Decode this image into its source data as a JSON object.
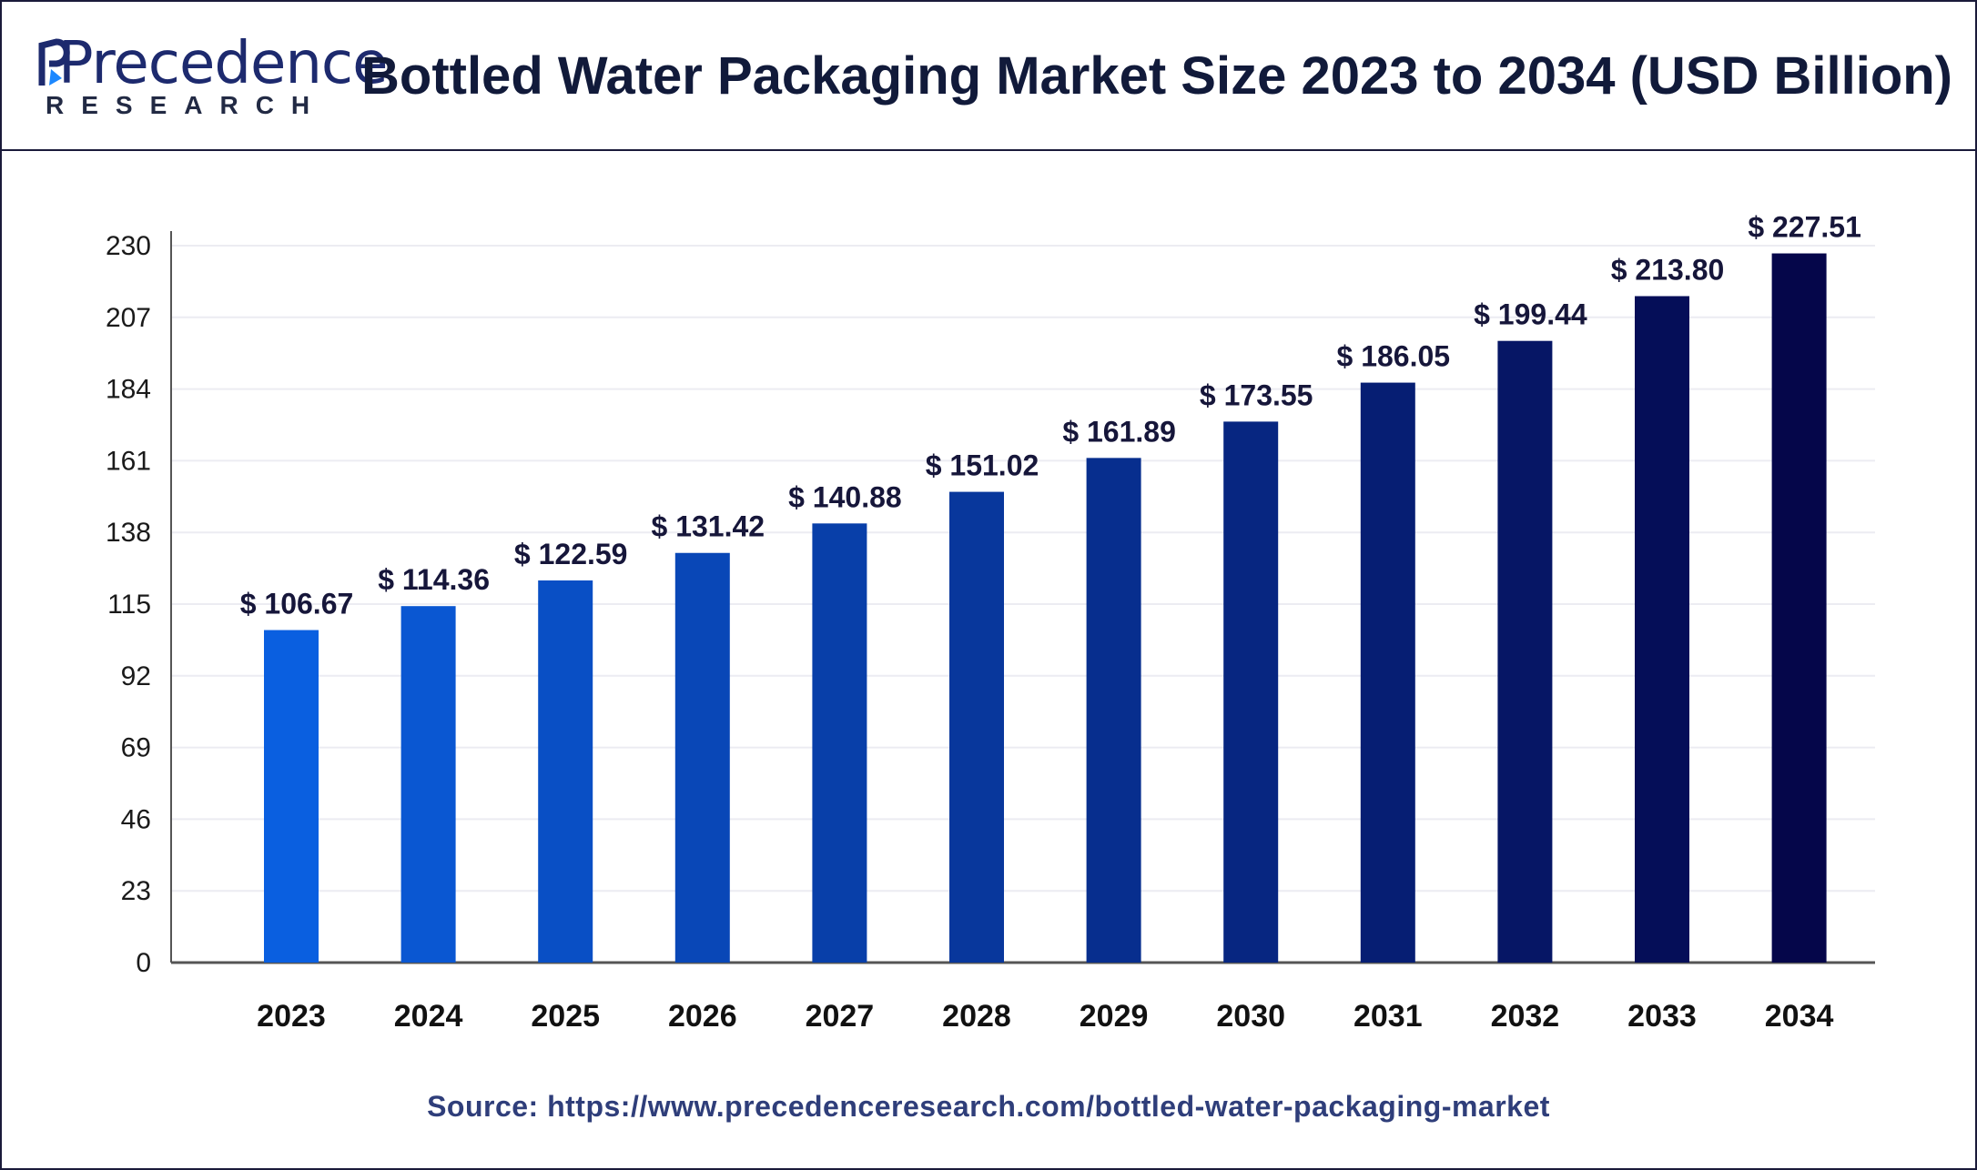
{
  "header": {
    "logo_word": "Precedence",
    "logo_sub": "RESEARCH",
    "title": "Bottled Water Packaging Market Size 2023 to 2034 (USD Billion)"
  },
  "source": "Source: https://www.precedenceresearch.com/bottled-water-packaging-market",
  "colors": {
    "border": "#1a1a3a",
    "title": "#111a3a",
    "brand": "#1d2a6e",
    "bar_start": "#0a5fe0",
    "bar_end": "#05064a",
    "grid": "#ececf2",
    "axis": "#555555"
  },
  "chart_data": {
    "type": "bar",
    "title": "Bottled Water Packaging Market Size 2023 to 2034 (USD Billion)",
    "xlabel": "",
    "ylabel": "",
    "categories": [
      "2023",
      "2024",
      "2025",
      "2026",
      "2027",
      "2028",
      "2029",
      "2030",
      "2031",
      "2032",
      "2033",
      "2034"
    ],
    "values": [
      106.67,
      114.36,
      122.59,
      131.42,
      140.88,
      151.02,
      161.89,
      173.55,
      186.05,
      199.44,
      213.8,
      227.51
    ],
    "labels": [
      "$ 106.67",
      "$ 114.36",
      "$ 122.59",
      "$ 131.42",
      "$ 140.88",
      "$ 151.02",
      "$ 161.89",
      "$ 173.55",
      "$ 186.05",
      "$ 199.44",
      "$ 213.80",
      "$ 227.51"
    ],
    "yticks": [
      "0",
      "23",
      "46",
      "69",
      "92",
      "115",
      "138",
      "161",
      "184",
      "207",
      "230"
    ],
    "ylim": [
      0,
      230
    ],
    "grid": true,
    "legend": "none"
  }
}
